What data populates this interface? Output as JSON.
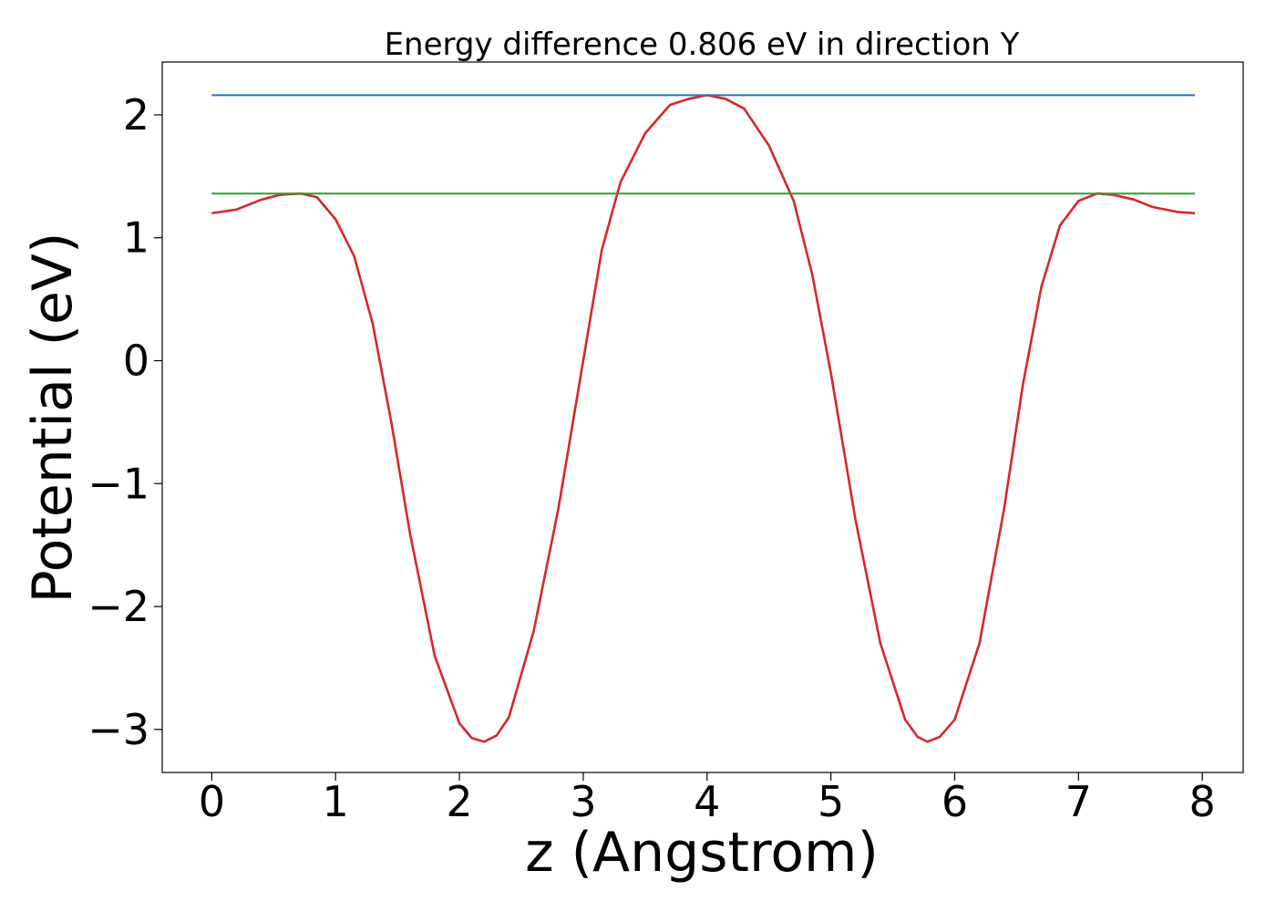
{
  "chart_data": {
    "type": "line",
    "title": "Energy difference 0.806 eV in direction Y",
    "xlabel": "z (Angstrom)",
    "ylabel": "Potential (eV)",
    "xlim": [
      -0.4,
      8.33
    ],
    "ylim": [
      -3.35,
      2.43
    ],
    "xticks": [
      0,
      1,
      2,
      3,
      4,
      5,
      6,
      7,
      8
    ],
    "xtick_labels": [
      "0",
      "1",
      "2",
      "3",
      "4",
      "5",
      "6",
      "7",
      "8"
    ],
    "yticks": [
      2,
      1,
      0,
      -1,
      -2,
      -3
    ],
    "ytick_labels": [
      "2",
      "1",
      "0",
      "−1",
      "−2",
      "−3"
    ],
    "grid": false,
    "legend": "none",
    "series": [
      {
        "color": "#d62728",
        "x": [
          0.0,
          0.2,
          0.4,
          0.55,
          0.72,
          0.85,
          1.0,
          1.15,
          1.3,
          1.45,
          1.6,
          1.8,
          2.0,
          2.1,
          2.2,
          2.3,
          2.4,
          2.6,
          2.8,
          3.0,
          3.15,
          3.3,
          3.5,
          3.7,
          3.85,
          4.0,
          4.15,
          4.3,
          4.5,
          4.7,
          4.85,
          5.0,
          5.2,
          5.4,
          5.6,
          5.7,
          5.78,
          5.88,
          6.0,
          6.2,
          6.4,
          6.55,
          6.7,
          6.85,
          7.0,
          7.15,
          7.28,
          7.45,
          7.6,
          7.8,
          7.94
        ],
        "y": [
          1.2,
          1.23,
          1.31,
          1.35,
          1.36,
          1.33,
          1.15,
          0.85,
          0.3,
          -0.5,
          -1.4,
          -2.4,
          -2.95,
          -3.07,
          -3.1,
          -3.05,
          -2.9,
          -2.2,
          -1.2,
          0.0,
          0.9,
          1.45,
          1.85,
          2.08,
          2.13,
          2.16,
          2.13,
          2.05,
          1.75,
          1.3,
          0.7,
          -0.1,
          -1.3,
          -2.3,
          -2.92,
          -3.06,
          -3.1,
          -3.06,
          -2.92,
          -2.3,
          -1.2,
          -0.2,
          0.6,
          1.1,
          1.3,
          1.36,
          1.35,
          1.31,
          1.25,
          1.21,
          1.2
        ]
      },
      {
        "color": "#1f77b4",
        "x": [
          0.0,
          7.94
        ],
        "y": [
          2.16,
          2.16
        ]
      },
      {
        "color": "#2ca02c",
        "x": [
          0.0,
          7.94
        ],
        "y": [
          1.36,
          1.36
        ]
      }
    ]
  }
}
